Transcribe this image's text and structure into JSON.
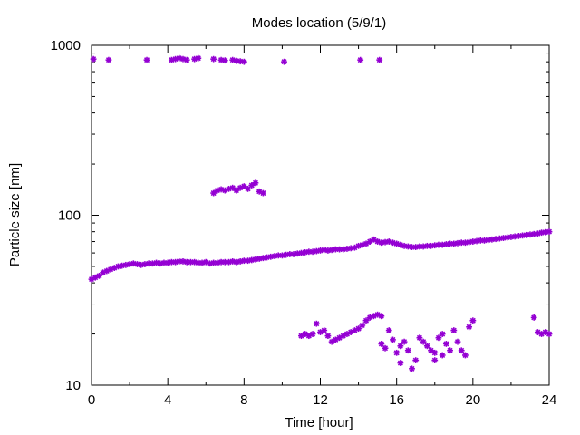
{
  "chart_data": {
    "type": "scatter",
    "title": "Modes location (5/9/1)",
    "xlabel": "Time [hour]",
    "ylabel": "Particle size [nm]",
    "x_scale": "linear",
    "y_scale": "log",
    "xlim": [
      0,
      24
    ],
    "ylim": [
      10,
      1000
    ],
    "x_ticks": [
      0,
      4,
      8,
      12,
      16,
      20,
      24
    ],
    "x_minor_step": 2,
    "y_ticks": [
      10,
      100,
      1000
    ],
    "marker_color": "#9400D3",
    "grid": false,
    "legend": "none",
    "series": [
      {
        "points": [
          [
            0.0,
            42
          ],
          [
            0.2,
            43
          ],
          [
            0.4,
            44
          ],
          [
            0.6,
            46
          ],
          [
            0.8,
            47
          ],
          [
            1.0,
            48
          ],
          [
            1.2,
            49
          ],
          [
            1.4,
            50
          ],
          [
            1.6,
            50.5
          ],
          [
            1.8,
            51
          ],
          [
            2.0,
            51.5
          ],
          [
            2.2,
            52
          ],
          [
            2.4,
            51.5
          ],
          [
            2.6,
            51
          ],
          [
            2.8,
            51.5
          ],
          [
            3.0,
            52
          ],
          [
            3.2,
            52
          ],
          [
            3.4,
            52.5
          ],
          [
            3.6,
            52
          ],
          [
            3.8,
            52.5
          ],
          [
            4.0,
            52.5
          ],
          [
            4.2,
            53
          ],
          [
            4.4,
            53
          ],
          [
            4.6,
            53.5
          ],
          [
            4.8,
            53.5
          ],
          [
            5.0,
            53
          ],
          [
            5.2,
            53
          ],
          [
            5.4,
            53
          ],
          [
            5.6,
            52.5
          ],
          [
            5.8,
            52.5
          ],
          [
            6.0,
            53
          ],
          [
            6.2,
            52
          ],
          [
            6.4,
            52.5
          ],
          [
            6.6,
            52.5
          ],
          [
            6.8,
            53
          ],
          [
            7.0,
            53
          ],
          [
            7.2,
            53
          ],
          [
            7.4,
            53.5
          ],
          [
            7.6,
            53
          ],
          [
            7.8,
            53.5
          ],
          [
            8.0,
            54
          ],
          [
            8.2,
            54
          ],
          [
            8.4,
            54.5
          ],
          [
            8.6,
            55
          ],
          [
            8.8,
            55.5
          ],
          [
            9.0,
            56
          ],
          [
            9.2,
            56.5
          ],
          [
            9.4,
            57
          ],
          [
            9.6,
            57.5
          ],
          [
            9.8,
            58
          ],
          [
            10.0,
            58
          ],
          [
            10.2,
            58.5
          ],
          [
            10.4,
            59
          ],
          [
            10.6,
            59
          ],
          [
            10.8,
            59.5
          ],
          [
            11.0,
            60
          ],
          [
            11.2,
            60.5
          ],
          [
            11.4,
            61
          ],
          [
            11.6,
            61
          ],
          [
            11.8,
            61.5
          ],
          [
            12.0,
            62
          ],
          [
            12.2,
            62.5
          ],
          [
            12.4,
            62
          ],
          [
            12.6,
            62.5
          ],
          [
            12.8,
            63
          ],
          [
            13.0,
            63
          ],
          [
            13.2,
            63
          ],
          [
            13.4,
            63.5
          ],
          [
            13.6,
            64
          ],
          [
            13.8,
            64.5
          ],
          [
            14.0,
            66
          ],
          [
            14.2,
            67
          ],
          [
            14.4,
            68
          ],
          [
            14.6,
            70
          ],
          [
            14.8,
            72
          ],
          [
            15.0,
            70
          ],
          [
            15.2,
            69
          ],
          [
            15.4,
            69.5
          ],
          [
            15.6,
            70
          ],
          [
            15.8,
            69
          ],
          [
            16.0,
            68
          ],
          [
            16.2,
            67
          ],
          [
            16.4,
            66
          ],
          [
            16.6,
            65.5
          ],
          [
            16.8,
            65
          ],
          [
            17.0,
            65
          ],
          [
            17.2,
            65.5
          ],
          [
            17.4,
            65.5
          ],
          [
            17.6,
            66
          ],
          [
            17.8,
            66
          ],
          [
            18.0,
            66.5
          ],
          [
            18.2,
            67
          ],
          [
            18.4,
            67
          ],
          [
            18.6,
            67.5
          ],
          [
            18.8,
            68
          ],
          [
            19.0,
            68
          ],
          [
            19.2,
            68.5
          ],
          [
            19.4,
            69
          ],
          [
            19.6,
            69
          ],
          [
            19.8,
            69.5
          ],
          [
            20.0,
            70
          ],
          [
            20.2,
            70.5
          ],
          [
            20.4,
            71
          ],
          [
            20.6,
            71
          ],
          [
            20.8,
            71.5
          ],
          [
            21.0,
            72
          ],
          [
            21.2,
            72.5
          ],
          [
            21.4,
            73
          ],
          [
            21.6,
            73.5
          ],
          [
            21.8,
            74
          ],
          [
            22.0,
            74.5
          ],
          [
            22.2,
            75
          ],
          [
            22.4,
            75.5
          ],
          [
            22.6,
            76
          ],
          [
            22.8,
            76.5
          ],
          [
            23.0,
            77
          ],
          [
            23.2,
            77.5
          ],
          [
            23.4,
            78
          ],
          [
            23.6,
            79
          ],
          [
            23.8,
            79.5
          ],
          [
            24.0,
            80
          ],
          [
            0.1,
            830
          ],
          [
            0.9,
            820
          ],
          [
            2.9,
            820
          ],
          [
            4.2,
            820
          ],
          [
            4.4,
            830
          ],
          [
            4.6,
            840
          ],
          [
            4.8,
            830
          ],
          [
            5.0,
            820
          ],
          [
            5.4,
            830
          ],
          [
            5.6,
            840
          ],
          [
            6.4,
            830
          ],
          [
            6.8,
            820
          ],
          [
            7.0,
            815
          ],
          [
            7.4,
            820
          ],
          [
            7.6,
            810
          ],
          [
            7.8,
            805
          ],
          [
            8.0,
            800
          ],
          [
            10.1,
            800
          ],
          [
            14.1,
            820
          ],
          [
            15.1,
            820
          ],
          [
            6.4,
            135
          ],
          [
            6.6,
            140
          ],
          [
            6.8,
            142
          ],
          [
            7.0,
            140
          ],
          [
            7.2,
            143
          ],
          [
            7.4,
            145
          ],
          [
            7.6,
            140
          ],
          [
            7.8,
            145
          ],
          [
            8.0,
            148
          ],
          [
            8.2,
            143
          ],
          [
            8.4,
            150
          ],
          [
            8.6,
            155
          ],
          [
            8.8,
            138
          ],
          [
            9.0,
            135
          ],
          [
            11.0,
            19.5
          ],
          [
            11.2,
            20
          ],
          [
            11.4,
            19.5
          ],
          [
            11.6,
            20
          ],
          [
            11.8,
            23
          ],
          [
            12.0,
            20.5
          ],
          [
            12.2,
            21
          ],
          [
            12.4,
            19.5
          ],
          [
            12.6,
            18
          ],
          [
            12.8,
            18.5
          ],
          [
            13.0,
            19
          ],
          [
            13.2,
            19.5
          ],
          [
            13.4,
            20
          ],
          [
            13.6,
            20.5
          ],
          [
            13.8,
            21
          ],
          [
            14.0,
            21.5
          ],
          [
            14.2,
            22.5
          ],
          [
            14.4,
            24
          ],
          [
            14.6,
            25
          ],
          [
            14.8,
            25.5
          ],
          [
            15.0,
            26
          ],
          [
            15.2,
            25.5
          ],
          [
            15.2,
            17.5
          ],
          [
            15.4,
            16.5
          ],
          [
            15.6,
            21
          ],
          [
            15.8,
            18.5
          ],
          [
            16.0,
            15.5
          ],
          [
            16.2,
            13.5
          ],
          [
            16.2,
            17
          ],
          [
            16.4,
            18
          ],
          [
            16.6,
            16
          ],
          [
            16.8,
            12.5
          ],
          [
            17.0,
            14
          ],
          [
            17.2,
            19
          ],
          [
            17.4,
            18
          ],
          [
            17.6,
            17
          ],
          [
            17.8,
            16
          ],
          [
            18.0,
            15.5
          ],
          [
            18.2,
            19
          ],
          [
            18.4,
            20
          ],
          [
            18.6,
            17.5
          ],
          [
            18.8,
            16
          ],
          [
            19.0,
            21
          ],
          [
            19.2,
            18
          ],
          [
            19.4,
            16
          ],
          [
            19.6,
            15
          ],
          [
            19.8,
            22
          ],
          [
            20.0,
            24
          ],
          [
            18.0,
            14
          ],
          [
            18.4,
            15
          ],
          [
            23.2,
            25
          ],
          [
            23.4,
            20.5
          ],
          [
            23.6,
            20
          ],
          [
            23.8,
            20.5
          ],
          [
            24.0,
            20
          ]
        ]
      }
    ]
  }
}
